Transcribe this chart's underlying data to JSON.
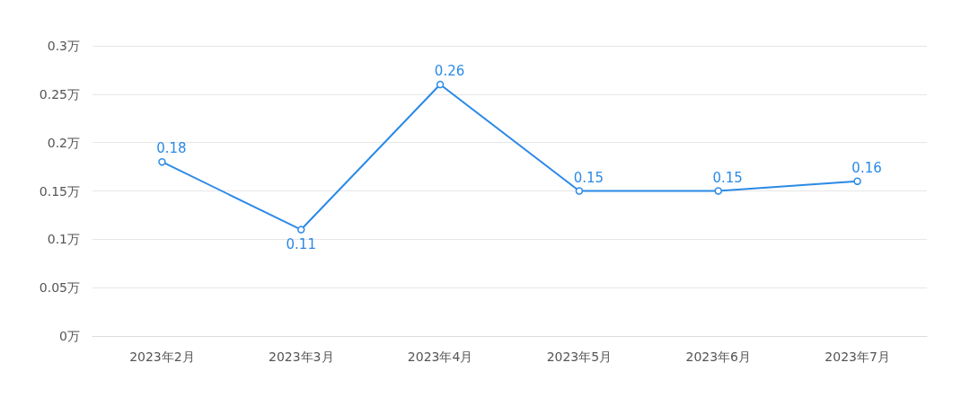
{
  "chart_data": {
    "type": "line",
    "categories": [
      "2023年2月",
      "2023年3月",
      "2023年4月",
      "2023年5月",
      "2023年6月",
      "2023年7月"
    ],
    "series": [
      {
        "color": "#2b8ae6",
        "values": [
          0.18,
          0.11,
          0.26,
          0.15,
          0.15,
          0.16
        ]
      }
    ],
    "ylim": [
      0,
      0.3
    ],
    "yticks": [
      {
        "value": 0,
        "label": "0万"
      },
      {
        "value": 0.05,
        "label": "0.05万"
      },
      {
        "value": 0.1,
        "label": "0.1万"
      },
      {
        "value": 0.15,
        "label": "0.15万"
      },
      {
        "value": 0.2,
        "label": "0.2万"
      },
      {
        "value": 0.25,
        "label": "0.25万"
      },
      {
        "value": 0.3,
        "label": "0.3万"
      }
    ],
    "grid": "y",
    "marker": "circle",
    "line_style": "solid",
    "data_labels": true
  }
}
